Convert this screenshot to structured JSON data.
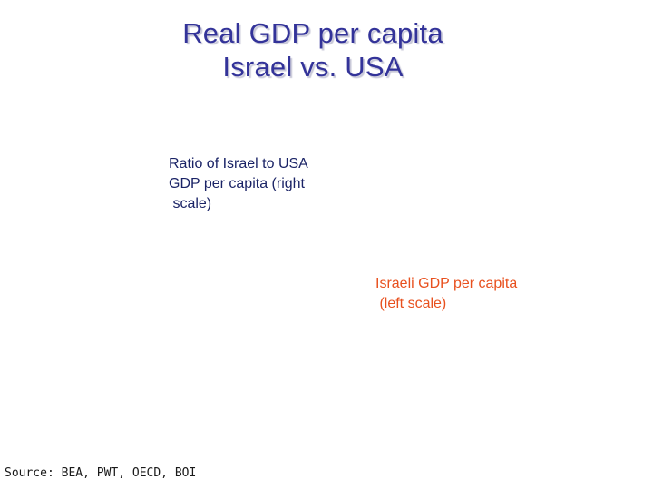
{
  "chart_data": {
    "type": "line",
    "title_lines": [
      "Real GDP per capita",
      "Israel vs. USA"
    ],
    "series": [
      {
        "name": "Ratio of Israel to USA GDP per capita (right scale)",
        "axis": "right",
        "color": "#1a2366",
        "values": []
      },
      {
        "name": "Israeli GDP per capita (left scale)",
        "axis": "left",
        "color": "#e8501e",
        "values": []
      }
    ],
    "annotations": [
      {
        "id": "ratio",
        "text": "Ratio of Israel to USA\nGDP per capita (right\n scale)",
        "color": "#1a2366"
      },
      {
        "id": "israel",
        "text": "Israeli GDP per capita\n (left scale)",
        "color": "#e8501e"
      }
    ],
    "source": "Source: BEA, PWT, OECD, BOI"
  }
}
